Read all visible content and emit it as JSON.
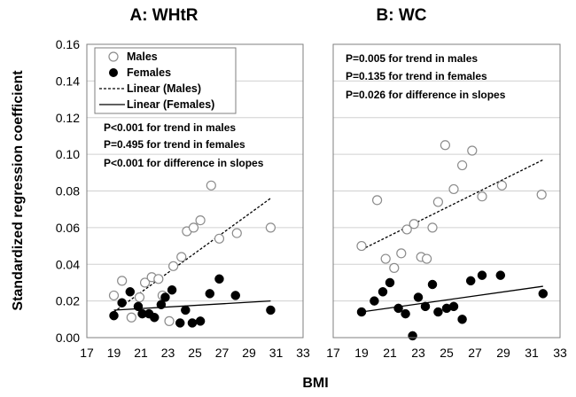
{
  "chart_data": [
    {
      "type": "scatter",
      "title": "A: WHtR",
      "xlim": [
        17,
        33
      ],
      "ylim": [
        0,
        0.16
      ],
      "xticks": [
        "17",
        "19",
        "21",
        "23",
        "25",
        "27",
        "29",
        "31",
        "33"
      ],
      "yticks": [
        "0.00",
        "0.02",
        "0.04",
        "0.06",
        "0.08",
        "0.10",
        "0.12",
        "0.14",
        "0.16"
      ],
      "grid": "horizontal",
      "legend_placement": "top-left",
      "legend": [
        {
          "label": "Males",
          "marker": "open-circle"
        },
        {
          "label": "Females",
          "marker": "filled-circle"
        },
        {
          "label": "Linear (Males)",
          "marker": "dashed-line"
        },
        {
          "label": "Linear (Females)",
          "marker": "solid-line"
        }
      ],
      "annotations": [
        "P<0.001 for trend in males",
        "P=0.495 for trend in females",
        "P<0.001 for difference in slopes"
      ],
      "series": [
        {
          "name": "Males",
          "points": [
            [
              19.0,
              0.023
            ],
            [
              19.6,
              0.031
            ],
            [
              20.3,
              0.011
            ],
            [
              20.9,
              0.022
            ],
            [
              21.3,
              0.03
            ],
            [
              21.8,
              0.033
            ],
            [
              22.3,
              0.032
            ],
            [
              22.6,
              0.023
            ],
            [
              23.1,
              0.009
            ],
            [
              23.4,
              0.039
            ],
            [
              24.0,
              0.044
            ],
            [
              24.4,
              0.058
            ],
            [
              24.9,
              0.06
            ],
            [
              25.4,
              0.064
            ],
            [
              26.2,
              0.083
            ],
            [
              26.8,
              0.054
            ],
            [
              28.1,
              0.057
            ],
            [
              30.6,
              0.06
            ]
          ]
        },
        {
          "name": "Females",
          "points": [
            [
              19.0,
              0.012
            ],
            [
              19.6,
              0.019
            ],
            [
              20.2,
              0.025
            ],
            [
              20.8,
              0.017
            ],
            [
              21.1,
              0.013
            ],
            [
              21.6,
              0.013
            ],
            [
              22.0,
              0.011
            ],
            [
              22.5,
              0.018
            ],
            [
              22.8,
              0.022
            ],
            [
              23.3,
              0.026
            ],
            [
              23.9,
              0.008
            ],
            [
              24.3,
              0.015
            ],
            [
              24.8,
              0.008
            ],
            [
              25.4,
              0.009
            ],
            [
              26.1,
              0.024
            ],
            [
              26.8,
              0.032
            ],
            [
              28.0,
              0.023
            ],
            [
              30.6,
              0.015
            ]
          ]
        },
        {
          "name": "Linear (Males)",
          "trend": [
            [
              19.0,
              0.014
            ],
            [
              30.6,
              0.076
            ]
          ]
        },
        {
          "name": "Linear (Females)",
          "trend": [
            [
              19.0,
              0.015
            ],
            [
              30.6,
              0.02
            ]
          ]
        }
      ]
    },
    {
      "type": "scatter",
      "title": "B: WC",
      "xlim": [
        17,
        33
      ],
      "ylim": [
        0,
        0.16
      ],
      "xticks": [
        "17",
        "19",
        "21",
        "23",
        "25",
        "27",
        "29",
        "31",
        "33"
      ],
      "grid": "horizontal",
      "annotations": [
        "P=0.005 for trend in males",
        "P=0.135 for trend in females",
        "P=0.026 for difference in slopes"
      ],
      "series": [
        {
          "name": "Males",
          "points": [
            [
              19.0,
              0.05
            ],
            [
              20.1,
              0.075
            ],
            [
              20.7,
              0.043
            ],
            [
              21.3,
              0.038
            ],
            [
              21.8,
              0.046
            ],
            [
              22.2,
              0.059
            ],
            [
              22.7,
              0.062
            ],
            [
              23.2,
              0.044
            ],
            [
              23.6,
              0.043
            ],
            [
              24.0,
              0.06
            ],
            [
              24.4,
              0.074
            ],
            [
              24.9,
              0.105
            ],
            [
              25.5,
              0.081
            ],
            [
              26.1,
              0.094
            ],
            [
              26.8,
              0.102
            ],
            [
              27.5,
              0.077
            ],
            [
              28.9,
              0.083
            ],
            [
              31.7,
              0.078
            ]
          ]
        },
        {
          "name": "Females",
          "points": [
            [
              19.0,
              0.014
            ],
            [
              19.9,
              0.02
            ],
            [
              20.5,
              0.025
            ],
            [
              21.0,
              0.03
            ],
            [
              21.6,
              0.016
            ],
            [
              22.1,
              0.013
            ],
            [
              22.6,
              0.001
            ],
            [
              23.0,
              0.022
            ],
            [
              23.5,
              0.017
            ],
            [
              24.0,
              0.029
            ],
            [
              24.4,
              0.014
            ],
            [
              25.0,
              0.016
            ],
            [
              25.5,
              0.017
            ],
            [
              26.1,
              0.01
            ],
            [
              26.7,
              0.031
            ],
            [
              27.5,
              0.034
            ],
            [
              28.8,
              0.034
            ],
            [
              31.8,
              0.024
            ]
          ]
        },
        {
          "name": "Linear (Males)",
          "trend": [
            [
              19.0,
              0.048
            ],
            [
              31.8,
              0.097
            ]
          ]
        },
        {
          "name": "Linear (Females)",
          "trend": [
            [
              19.0,
              0.014
            ],
            [
              31.8,
              0.028
            ]
          ]
        }
      ]
    }
  ],
  "shared": {
    "ylabel": "Standardized regression coefficient",
    "xlabel": "BMI"
  }
}
